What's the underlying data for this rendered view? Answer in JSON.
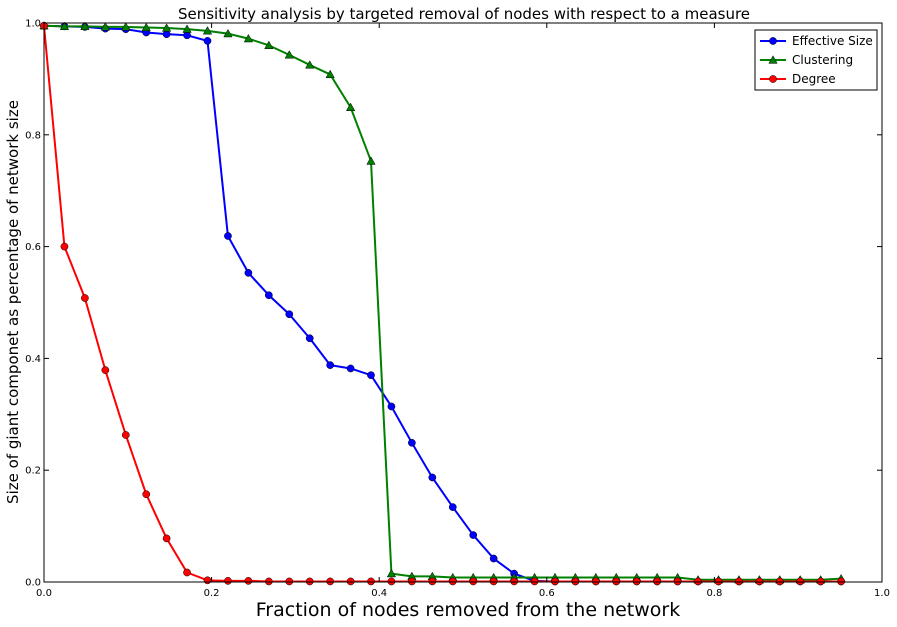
{
  "chart_data": {
    "type": "line",
    "title": "Sensitivity analysis by targeted removal of nodes with respect to a measure",
    "xlabel": "Fraction of nodes removed from the network",
    "ylabel": "Size of giant componet as percentage of network size",
    "xlim": [
      0.0,
      1.0
    ],
    "ylim": [
      0.0,
      1.0
    ],
    "xticks": [
      "0.0",
      "0.2",
      "0.4",
      "0.6",
      "0.8",
      "1.0"
    ],
    "yticks": [
      "0.0",
      "0.2",
      "0.4",
      "0.6",
      "0.8",
      "1.0"
    ],
    "grid": false,
    "legend_position": "top-right",
    "x": [
      0.0,
      0.0244,
      0.0488,
      0.0732,
      0.0976,
      0.122,
      0.1463,
      0.1707,
      0.1951,
      0.2195,
      0.2439,
      0.2683,
      0.2927,
      0.3171,
      0.3415,
      0.3659,
      0.3902,
      0.4146,
      0.439,
      0.4634,
      0.4878,
      0.5122,
      0.5366,
      0.561,
      0.5854,
      0.6098,
      0.6341,
      0.6585,
      0.6829,
      0.7073,
      0.7317,
      0.7561,
      0.7805,
      0.8049,
      0.8293,
      0.8537,
      0.878,
      0.9024,
      0.9268,
      0.9512
    ],
    "series": [
      {
        "name": "Effective Size",
        "color": "#0000ff",
        "marker": "circle",
        "values": [
          0.995,
          0.994,
          0.993,
          0.99,
          0.989,
          0.983,
          0.98,
          0.978,
          0.968,
          0.619,
          0.553,
          0.513,
          0.479,
          0.436,
          0.388,
          0.382,
          0.37,
          0.314,
          0.249,
          0.187,
          0.134,
          0.084,
          0.042,
          0.015,
          0.002,
          0.001,
          0.001,
          0.001,
          0.001,
          0.001,
          0.001,
          0.001,
          0.001,
          0.001,
          0.001,
          0.001,
          0.001,
          0.001,
          0.001,
          0.001
        ]
      },
      {
        "name": "Clustering",
        "color": "#008000",
        "marker": "triangle",
        "values": [
          0.995,
          0.994,
          0.994,
          0.993,
          0.993,
          0.992,
          0.991,
          0.989,
          0.986,
          0.981,
          0.972,
          0.96,
          0.943,
          0.925,
          0.908,
          0.849,
          0.753,
          0.015,
          0.01,
          0.01,
          0.008,
          0.008,
          0.008,
          0.008,
          0.008,
          0.008,
          0.008,
          0.008,
          0.008,
          0.008,
          0.008,
          0.008,
          0.004,
          0.004,
          0.004,
          0.004,
          0.004,
          0.004,
          0.004,
          0.006
        ]
      },
      {
        "name": "Degree",
        "color": "#ff0000",
        "marker": "circle",
        "values": [
          0.995,
          0.6,
          0.508,
          0.379,
          0.263,
          0.157,
          0.078,
          0.017,
          0.003,
          0.002,
          0.002,
          0.001,
          0.001,
          0.001,
          0.001,
          0.001,
          0.001,
          0.001,
          0.001,
          0.001,
          0.001,
          0.001,
          0.001,
          0.001,
          0.001,
          0.001,
          0.001,
          0.001,
          0.001,
          0.001,
          0.001,
          0.001,
          0.001,
          0.001,
          0.001,
          0.001,
          0.001,
          0.001,
          0.001,
          0.001
        ]
      }
    ]
  }
}
